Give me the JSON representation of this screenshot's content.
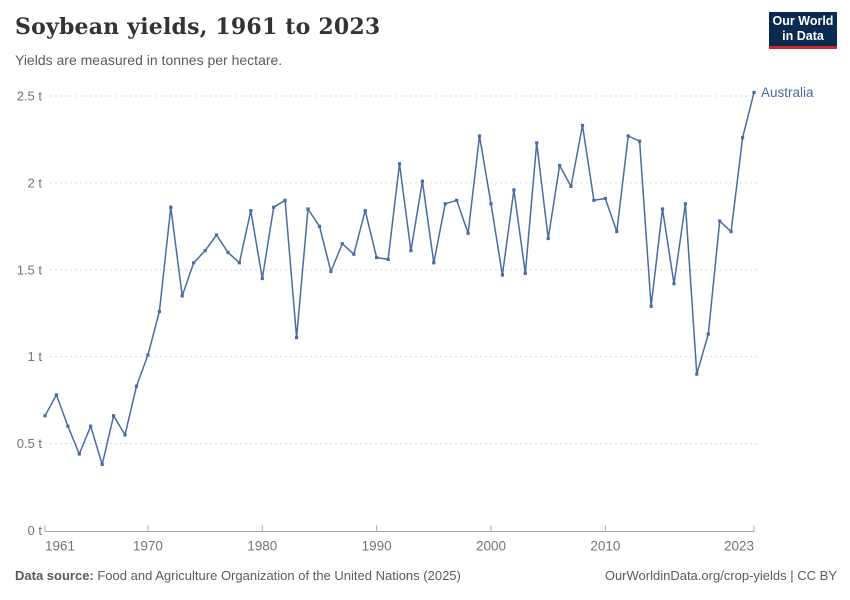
{
  "header": {
    "title": "Soybean yields, 1961 to 2023",
    "subtitle": "Yields are measured in tonnes per hectare.",
    "logo": {
      "line1": "Our World",
      "line2": "in Data",
      "bg_color": "#0b2a52",
      "accent_color": "#d0262c"
    }
  },
  "chart_data": {
    "type": "line",
    "title": "Soybean yields, 1961 to 2023",
    "ylabel": "tonnes per hectare",
    "xlabel": "",
    "xlim": [
      1961,
      2023
    ],
    "ylim": [
      0,
      2.5
    ],
    "grid": "horizontal-dashed",
    "legend_position": "end-of-line-label",
    "start_year": 1961,
    "end_year": 2023,
    "series": [
      {
        "name": "Australia",
        "color": "#4a6ba3",
        "values": [
          0.66,
          0.78,
          0.6,
          0.44,
          0.6,
          0.38,
          0.66,
          0.55,
          0.83,
          1.01,
          1.26,
          1.86,
          1.35,
          1.54,
          1.61,
          1.7,
          1.6,
          1.54,
          1.84,
          1.45,
          1.86,
          1.9,
          1.11,
          1.85,
          1.75,
          1.49,
          1.65,
          1.59,
          1.84,
          1.57,
          1.56,
          2.11,
          1.61,
          2.01,
          1.54,
          1.88,
          1.9,
          1.71,
          2.27,
          1.88,
          1.47,
          1.96,
          1.48,
          2.23,
          1.68,
          2.1,
          1.98,
          2.33,
          1.9,
          1.91,
          1.72,
          2.27,
          2.24,
          1.29,
          1.85,
          1.42,
          1.88,
          0.9,
          1.13,
          1.78,
          1.72,
          2.26,
          2.52
        ]
      }
    ],
    "x_ticks": [
      {
        "value": 1961,
        "label": "1961"
      },
      {
        "value": 1970,
        "label": "1970"
      },
      {
        "value": 1980,
        "label": "1980"
      },
      {
        "value": 1990,
        "label": "1990"
      },
      {
        "value": 2000,
        "label": "2000"
      },
      {
        "value": 2010,
        "label": "2010"
      },
      {
        "value": 2023,
        "label": "2023"
      }
    ],
    "y_ticks": [
      {
        "value": 0,
        "label": "0 t"
      },
      {
        "value": 0.5,
        "label": "0.5 t"
      },
      {
        "value": 1,
        "label": "1 t"
      },
      {
        "value": 1.5,
        "label": "1.5 t"
      },
      {
        "value": 2,
        "label": "2 t"
      },
      {
        "value": 2.5,
        "label": "2.5 t"
      }
    ],
    "colors": {
      "line": "#4a6ba3",
      "grid": "#dadada",
      "axis": "#a8a8a8",
      "tick_label": "#737373"
    }
  },
  "footer": {
    "data_source_label": "Data source:",
    "data_source_value": " Food and Agriculture Organization of the United Nations (2025)",
    "attribution": "OurWorldinData.org/crop-yields | CC BY"
  }
}
